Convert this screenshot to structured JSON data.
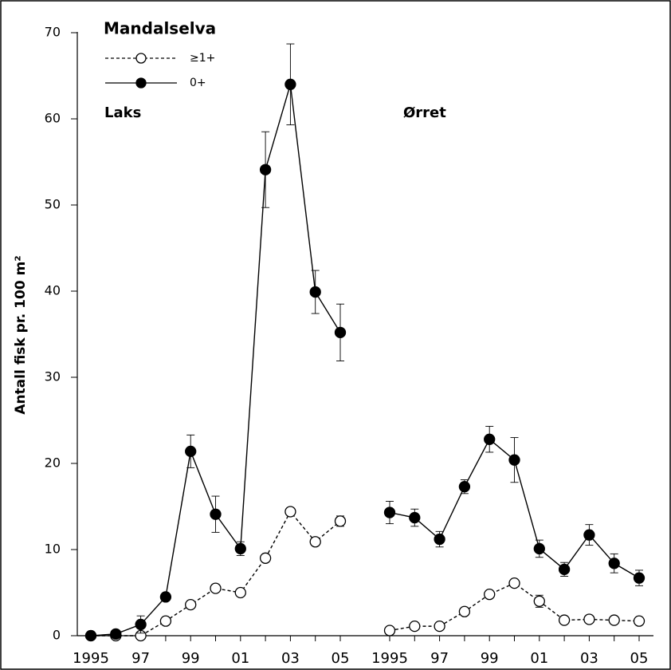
{
  "chart_data": {
    "type": "line",
    "title": "Mandalselva",
    "ylabel": "Antall fisk pr. 100 m²",
    "ylim": [
      0,
      70
    ],
    "yticks": [
      0,
      10,
      20,
      30,
      40,
      50,
      60,
      70
    ],
    "legend": [
      {
        "name": "≥1+",
        "color": "#000000",
        "line_style": "dashed",
        "marker": "open"
      },
      {
        "name": "0+",
        "color": "#000000",
        "line_style": "solid",
        "marker": "filled"
      }
    ],
    "panels": [
      {
        "label": "Laks",
        "categories": [
          "1995",
          null,
          "97",
          null,
          "99",
          null,
          "01",
          null,
          "03",
          null,
          "05"
        ],
        "series": [
          {
            "values": [
              0,
              0,
              0,
              1.7,
              3.6,
              5.5,
              5.0,
              9.0,
              14.4,
              10.9,
              13.3
            ],
            "errors": [
              0,
              0,
              0,
              0.2,
              0.3,
              0.3,
              0.4,
              0.4,
              0.4,
              0.3,
              0.6
            ]
          },
          {
            "values": [
              0,
              0.2,
              1.3,
              4.5,
              21.4,
              14.1,
              10.1,
              54.1,
              64.0,
              39.9,
              35.2
            ],
            "errors": [
              0,
              0,
              1.0,
              0.4,
              1.9,
              2.1,
              0.8,
              4.4,
              4.7,
              2.5,
              3.3
            ]
          }
        ]
      },
      {
        "label": "Ørret",
        "categories": [
          "1995",
          null,
          "97",
          null,
          "99",
          null,
          "01",
          null,
          "03",
          null,
          "05"
        ],
        "series": [
          {
            "values": [
              0.6,
              1.1,
              1.1,
              2.8,
              4.8,
              6.1,
              4.0,
              1.8,
              1.9,
              1.8,
              1.7
            ],
            "errors": [
              0,
              0,
              0,
              0.2,
              0.3,
              0.4,
              0.7,
              0,
              0,
              0,
              0
            ]
          },
          {
            "values": [
              14.3,
              13.7,
              11.2,
              17.3,
              22.8,
              20.4,
              10.1,
              7.7,
              11.7,
              8.4,
              6.7
            ],
            "errors": [
              1.3,
              1.0,
              0.9,
              0.8,
              1.5,
              2.6,
              1.0,
              0.8,
              1.2,
              1.1,
              0.9
            ]
          }
        ]
      }
    ]
  }
}
